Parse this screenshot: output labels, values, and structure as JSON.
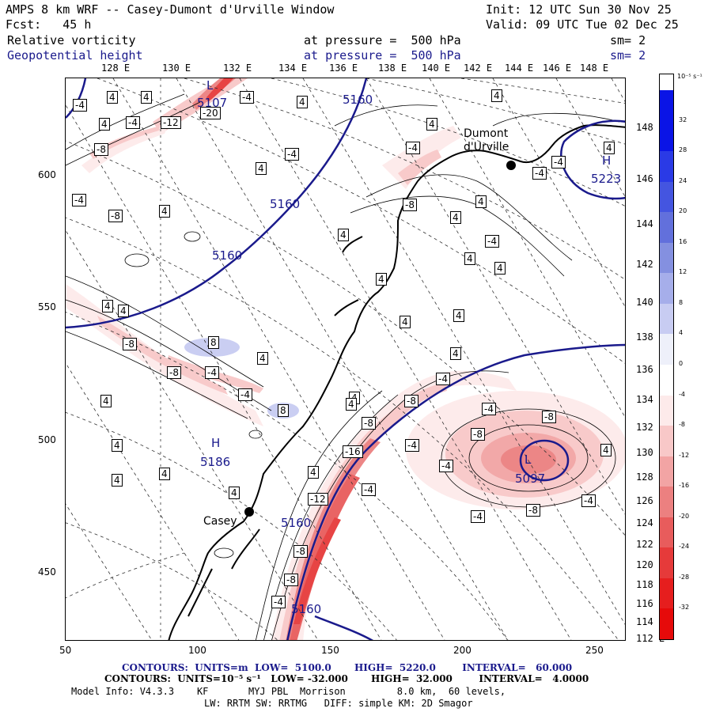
{
  "header": {
    "title": "AMPS 8 km WRF -- Casey-Dumont d'Urville Window",
    "init": "Init: 12 UTC Sun 30 Nov 25",
    "fcst": "Fcst:   45 h",
    "valid": "Valid: 09 UTC Tue 02 Dec 25"
  },
  "fields": [
    {
      "name": "Relative vorticity",
      "level": "at pressure =  500 hPa",
      "sm": "sm= 2"
    },
    {
      "name": "Geopotential height",
      "level": "at pressure =  500 hPa",
      "sm": "sm= 2"
    }
  ],
  "top_longitudes": [
    "128 E",
    "130 E",
    "132 E",
    "134 E",
    "136 E",
    "138 E",
    "140 E",
    "142 E",
    "144 E",
    "146 E",
    "148 E"
  ],
  "right_longitudes": [
    "148 E",
    "146 E",
    "144 E",
    "142 E",
    "140 E",
    "138 E",
    "136 E",
    "134 E",
    "132 E",
    "130 E",
    "128 E",
    "126 E",
    "124 E",
    "122 E",
    "120 E",
    "118 E",
    "116 E",
    "114 E",
    "112 E"
  ],
  "x_ticks": [
    "50",
    "100",
    "150",
    "200",
    "250"
  ],
  "y_ticks": [
    "600",
    "550",
    "500",
    "450"
  ],
  "colorbar": {
    "unit": "10⁻⁵ s⁻¹",
    "labels": [
      "32",
      "28",
      "24",
      "20",
      "16",
      "12",
      "8",
      "4",
      "0",
      "-4",
      "-8",
      "-12",
      "-16",
      "-20",
      "-24",
      "-28",
      "-32"
    ],
    "colors": [
      "#0a14e6",
      "#2a3ae6",
      "#4455e0",
      "#6270dc",
      "#8490e0",
      "#a6aeea",
      "#c8ccf2",
      "#eef0fa",
      "#ffffff",
      "#fdeaea",
      "#f8c8c8",
      "#f2a4a4",
      "#ec8080",
      "#e85c5c",
      "#e63a3a",
      "#e61e1e",
      "#e60a0a"
    ]
  },
  "places": {
    "casey": "Casey",
    "dumont": "Dumont\nd'Urville"
  },
  "height_labels": [
    {
      "text": "5160"
    },
    {
      "text": "5160"
    },
    {
      "text": "5160"
    },
    {
      "text": "5160"
    },
    {
      "text": "5160"
    },
    {
      "text": "5223"
    },
    {
      "text": "5186"
    },
    {
      "text": "5097"
    },
    {
      "text": "5107"
    }
  ],
  "centers": [
    {
      "text": "H"
    },
    {
      "text": "H"
    },
    {
      "text": "L"
    },
    {
      "text": "L"
    }
  ],
  "vort_labels": [
    "-4",
    "4",
    "4",
    "-4",
    "-12",
    "-20",
    "-4",
    "4",
    "-8",
    "4",
    "4",
    "4",
    "-4",
    "-4",
    "-4",
    "-8",
    "-4",
    "4",
    "4",
    "4",
    "-4",
    "-4",
    "4",
    "4",
    "4",
    "-8",
    "4",
    "-4",
    "4",
    "4",
    "4",
    "4",
    "8",
    "-8",
    "-8",
    "-4",
    "-4",
    "8",
    "4",
    "4",
    "4",
    "-4",
    "-8",
    "-8",
    "-8",
    "-4",
    "-16",
    "-8",
    "-4",
    "-12",
    "-4",
    "-4",
    "-8",
    "-8",
    "4",
    "4",
    "4",
    "-8",
    "-4",
    "4",
    "4",
    "4",
    "4",
    "-4",
    "4",
    "4",
    "4"
  ],
  "footer": {
    "contours1": "CONTOURS:  UNITS=m  LOW=  5100.0       HIGH=  5220.0        INTERVAL=   60.000",
    "contours2": "CONTOURS:  UNITS=10⁻⁵ s⁻¹   LOW= -32.000       HIGH=  32.000        INTERVAL=   4.0000",
    "model1": "Model Info: V4.3.3    KF       MYJ PBL  Morrison         8.0 km,  60 levels,",
    "model2": "LW: RRTM SW: RRTMG   DIFF: simple KM: 2D Smagor"
  }
}
